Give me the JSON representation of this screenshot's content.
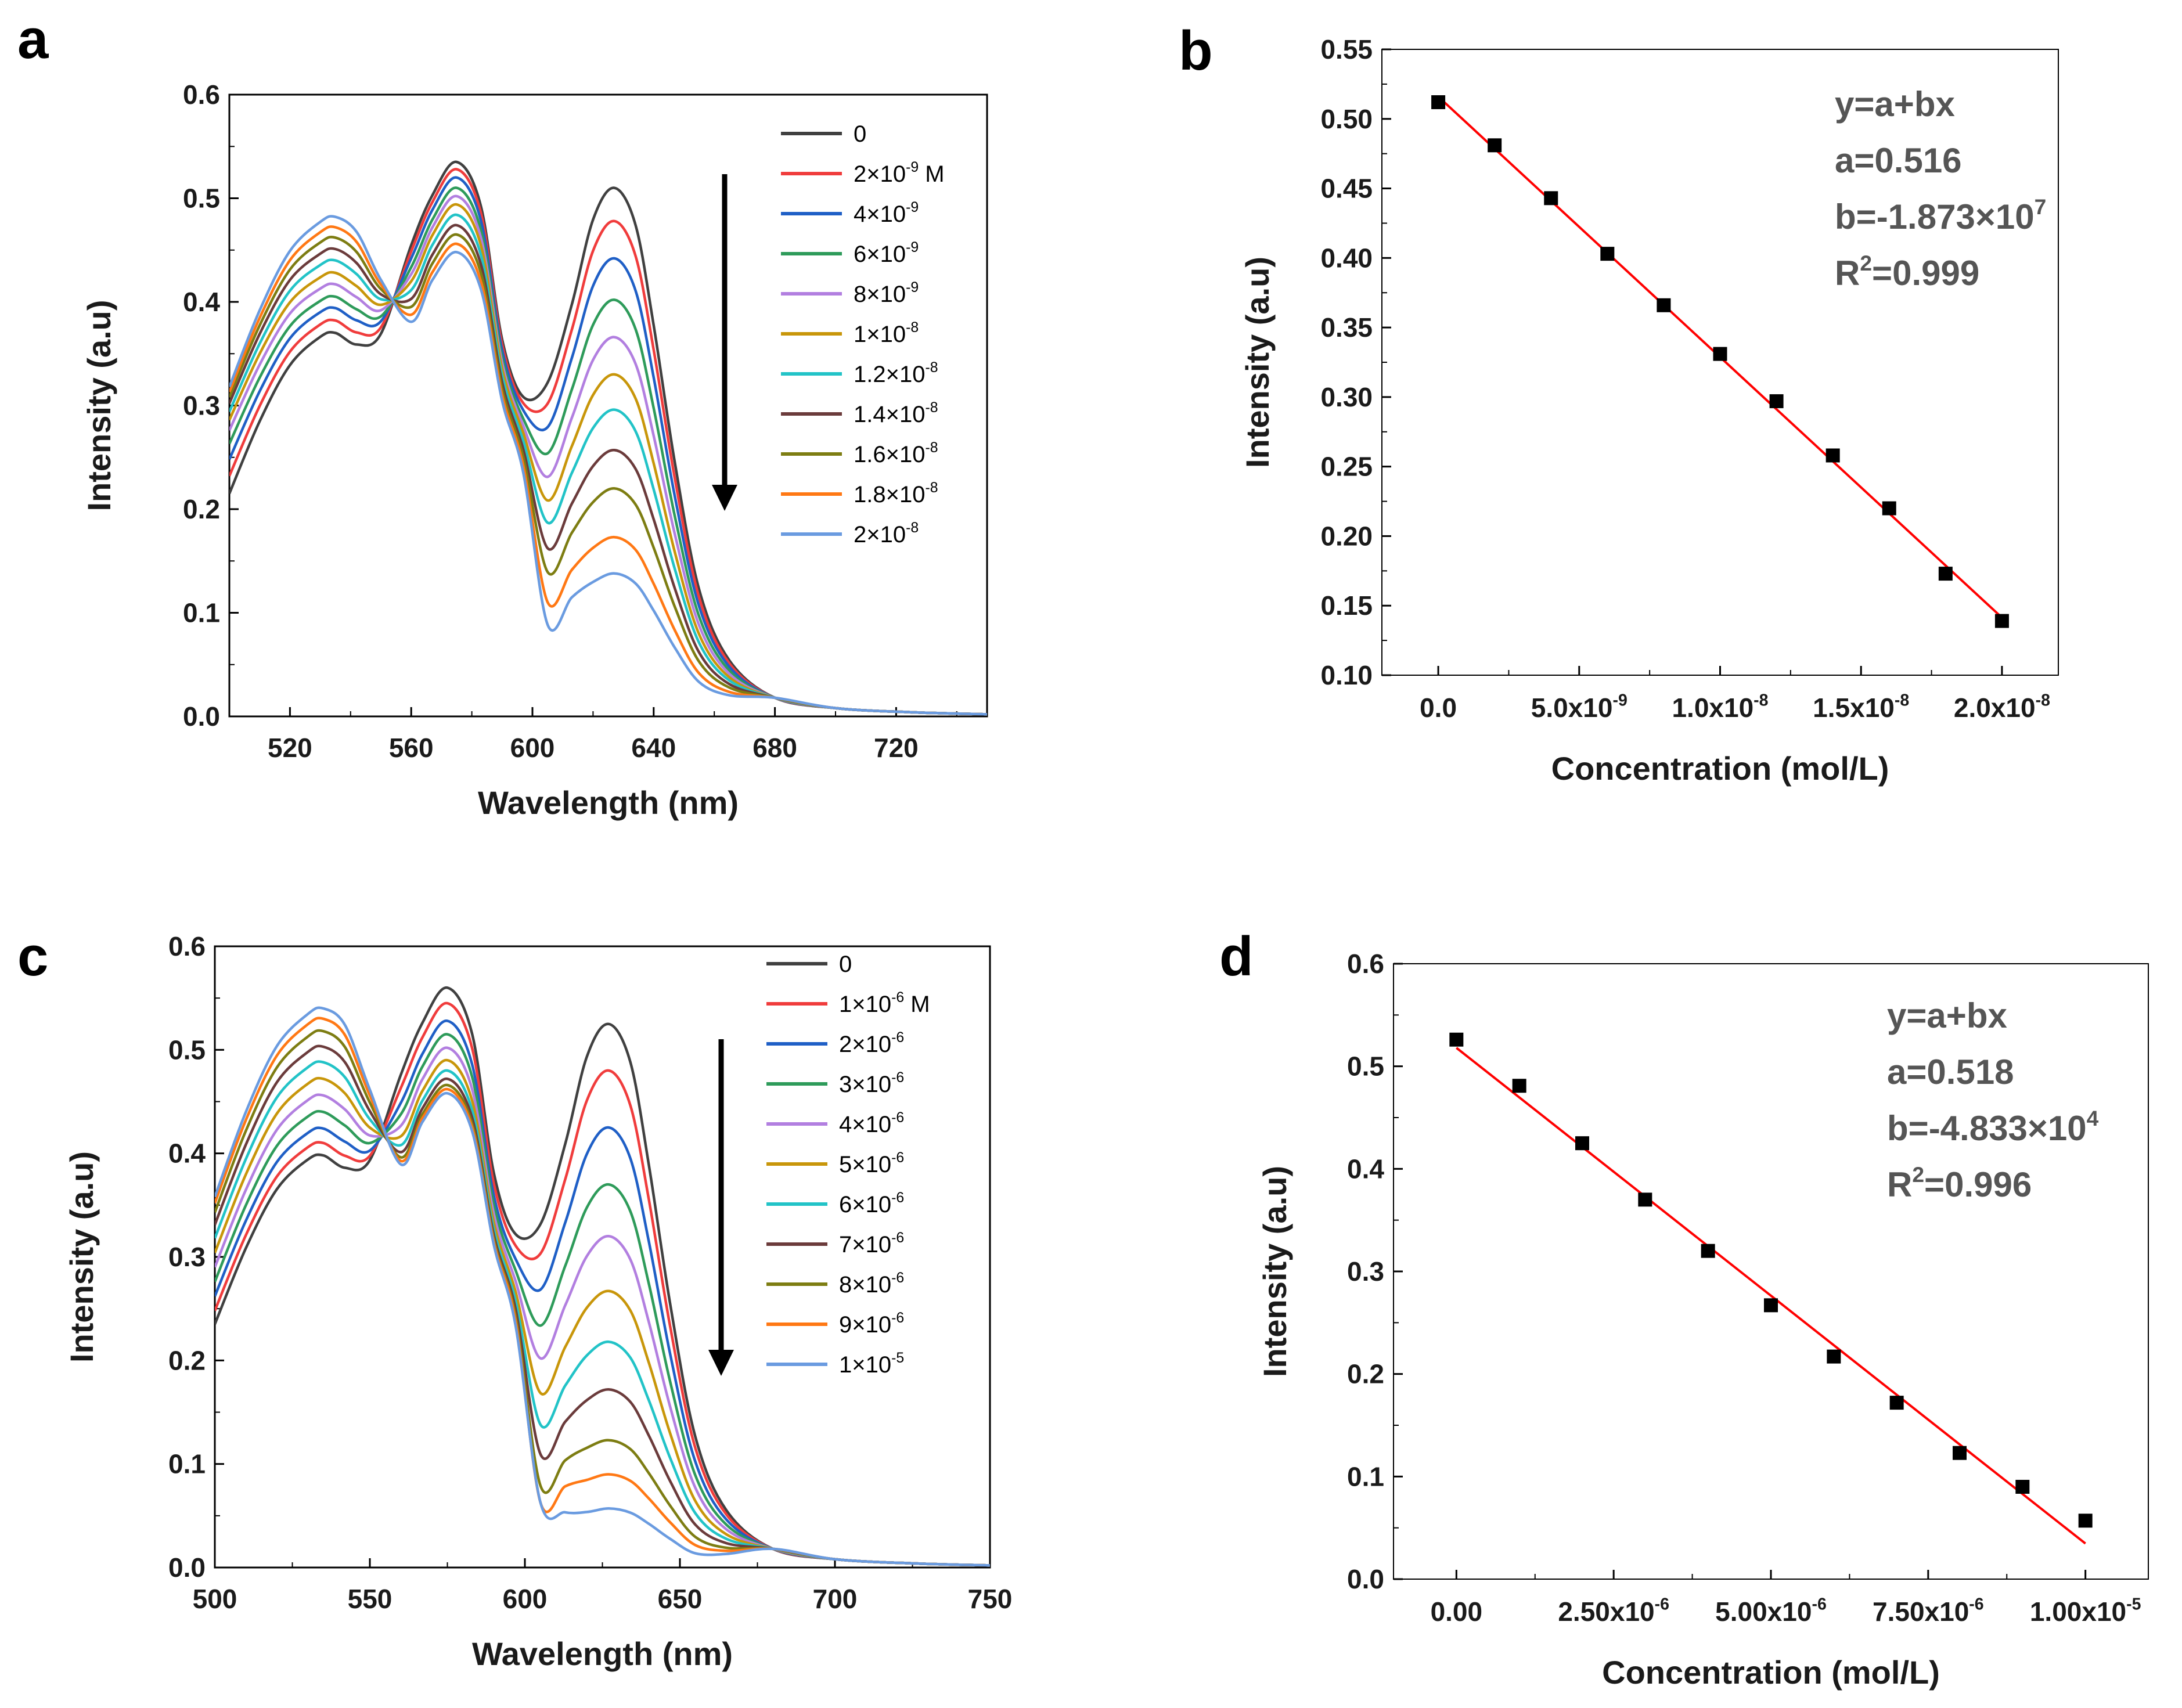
{
  "panels": [
    {
      "label": "a",
      "type": "line",
      "xlabel": "Wavelength (nm)",
      "ylabel": "Intensity (a.u)",
      "xlim": [
        500,
        750
      ],
      "ylim": [
        0.0,
        0.6
      ],
      "xticks": [
        "520",
        "560",
        "600",
        "640",
        "680",
        "720"
      ],
      "yticks": [
        "0.0",
        "0.1",
        "0.2",
        "0.3",
        "0.4",
        "0.5",
        "0.6"
      ],
      "legend_placement": "top-right",
      "annotation": "downward arrow",
      "series": [
        {
          "name": "0",
          "sup": "",
          "tail": "",
          "color": "#404040",
          "values": [
            0.215,
            0.37,
            0.535,
            0.51
          ]
        },
        {
          "name": "2×10",
          "sup": "-9",
          "tail": " M",
          "color": "#f03c3c",
          "values": [
            0.232,
            0.382,
            0.528,
            0.478
          ]
        },
        {
          "name": "4×10",
          "sup": "-9",
          "tail": "",
          "color": "#1f5fc6",
          "values": [
            0.248,
            0.394,
            0.52,
            0.442
          ]
        },
        {
          "name": "6×10",
          "sup": "-9",
          "tail": "",
          "color": "#2e9b5a",
          "values": [
            0.263,
            0.405,
            0.51,
            0.402
          ]
        },
        {
          "name": "8×10",
          "sup": "-9",
          "tail": "",
          "color": "#b27fe0",
          "values": [
            0.276,
            0.417,
            0.502,
            0.366
          ]
        },
        {
          "name": "1×10",
          "sup": "-8",
          "tail": "",
          "color": "#c8960a",
          "values": [
            0.286,
            0.428,
            0.494,
            0.33
          ]
        },
        {
          "name": "1.2×10",
          "sup": "-8",
          "tail": "",
          "color": "#22c3c7",
          "values": [
            0.294,
            0.44,
            0.484,
            0.296
          ]
        },
        {
          "name": "1.4×10",
          "sup": "-8",
          "tail": "",
          "color": "#6b3b3b",
          "values": [
            0.302,
            0.451,
            0.474,
            0.257
          ]
        },
        {
          "name": "1.6×10",
          "sup": "-8",
          "tail": "",
          "color": "#7d7d12",
          "values": [
            0.308,
            0.462,
            0.465,
            0.22
          ]
        },
        {
          "name": "1.8×10",
          "sup": "-8",
          "tail": "",
          "color": "#ff7814",
          "values": [
            0.313,
            0.472,
            0.456,
            0.173
          ]
        },
        {
          "name": "2×10",
          "sup": "-8",
          "tail": "",
          "color": "#6a9be0",
          "values": [
            0.318,
            0.482,
            0.448,
            0.138
          ]
        }
      ]
    },
    {
      "label": "b",
      "type": "scatter",
      "xlabel": "Concentration (mol/L)",
      "ylabel": "Intensity (a.u)",
      "xlim": [
        -2e-09,
        2.2e-08
      ],
      "ylim": [
        0.1,
        0.55
      ],
      "xticks": [
        {
          "base": "0.0",
          "sup": ""
        },
        {
          "base": "5.0x10",
          "sup": "-9"
        },
        {
          "base": "1.0x10",
          "sup": "-8"
        },
        {
          "base": "1.5x10",
          "sup": "-8"
        },
        {
          "base": "2.0x10",
          "sup": "-8"
        }
      ],
      "yticks": [
        "0.10",
        "0.15",
        "0.20",
        "0.25",
        "0.30",
        "0.35",
        "0.40",
        "0.45",
        "0.50",
        "0.55"
      ],
      "x": [
        0,
        2e-09,
        4e-09,
        6e-09,
        8e-09,
        1e-08,
        1.2e-08,
        1.4e-08,
        1.6e-08,
        1.8e-08,
        2e-08
      ],
      "y": [
        0.512,
        0.481,
        0.443,
        0.403,
        0.366,
        0.331,
        0.297,
        0.258,
        0.22,
        0.173,
        0.139
      ],
      "fit": {
        "a": 0.516,
        "b": -18730000.0,
        "color": "#ff0000"
      },
      "equation": {
        "line1": "y=a+bx",
        "line2": "a=0.516",
        "line3_base": "b=-1.873×10",
        "line3_sup": "7",
        "line4_pre": "R",
        "line4_sup": "2",
        "line4_post": "=0.999"
      }
    },
    {
      "label": "c",
      "type": "line",
      "xlabel": "Wavelength (nm)",
      "ylabel": "Intensity (a.u)",
      "xlim": [
        500,
        750
      ],
      "ylim": [
        0.0,
        0.6
      ],
      "xticks": [
        "500",
        "550",
        "600",
        "650",
        "700",
        "750"
      ],
      "yticks": [
        "0.0",
        "0.1",
        "0.2",
        "0.3",
        "0.4",
        "0.5",
        "0.6"
      ],
      "legend_placement": "top-right",
      "annotation": "downward arrow",
      "series": [
        {
          "name": "0",
          "sup": "",
          "tail": "",
          "color": "#404040",
          "values": [
            0.235,
            0.398,
            0.56,
            0.525
          ]
        },
        {
          "name": "1×10",
          "sup": "-6",
          "tail": " M",
          "color": "#f03c3c",
          "values": [
            0.248,
            0.41,
            0.545,
            0.48
          ]
        },
        {
          "name": "2×10",
          "sup": "-6",
          "tail": "",
          "color": "#1f5fc6",
          "values": [
            0.262,
            0.424,
            0.528,
            0.425
          ]
        },
        {
          "name": "3×10",
          "sup": "-6",
          "tail": "",
          "color": "#2e9b5a",
          "values": [
            0.276,
            0.44,
            0.515,
            0.37
          ]
        },
        {
          "name": "4×10",
          "sup": "-6",
          "tail": "",
          "color": "#b27fe0",
          "values": [
            0.29,
            0.456,
            0.502,
            0.32
          ]
        },
        {
          "name": "5×10",
          "sup": "-6",
          "tail": "",
          "color": "#c8960a",
          "values": [
            0.304,
            0.472,
            0.49,
            0.267
          ]
        },
        {
          "name": "6×10",
          "sup": "-6",
          "tail": "",
          "color": "#22c3c7",
          "values": [
            0.318,
            0.488,
            0.48,
            0.218
          ]
        },
        {
          "name": "7×10",
          "sup": "-6",
          "tail": "",
          "color": "#6b3b3b",
          "values": [
            0.331,
            0.503,
            0.472,
            0.172
          ]
        },
        {
          "name": "8×10",
          "sup": "-6",
          "tail": "",
          "color": "#7d7d12",
          "values": [
            0.343,
            0.518,
            0.466,
            0.123
          ]
        },
        {
          "name": "9×10",
          "sup": "-6",
          "tail": "",
          "color": "#ff7814",
          "values": [
            0.352,
            0.53,
            0.462,
            0.09
          ]
        },
        {
          "name": "1×10",
          "sup": "-5",
          "tail": "",
          "color": "#6a9be0",
          "values": [
            0.358,
            0.54,
            0.458,
            0.057
          ]
        }
      ]
    },
    {
      "label": "d",
      "type": "scatter",
      "xlabel": "Concentration (mol/L)",
      "ylabel": "Intensity (a.u)",
      "xlim": [
        -1e-06,
        1.1e-05
      ],
      "ylim": [
        0.0,
        0.6
      ],
      "xticks": [
        {
          "base": "0.00",
          "sup": ""
        },
        {
          "base": "2.50x10",
          "sup": "-6"
        },
        {
          "base": "5.00x10",
          "sup": "-6"
        },
        {
          "base": "7.50x10",
          "sup": "-6"
        },
        {
          "base": "1.00x10",
          "sup": "-5"
        }
      ],
      "yticks": [
        "0.0",
        "0.1",
        "0.2",
        "0.3",
        "0.4",
        "0.5",
        "0.6"
      ],
      "x": [
        0,
        1e-06,
        2e-06,
        3e-06,
        4e-06,
        5e-06,
        6e-06,
        7e-06,
        8e-06,
        9e-06,
        1e-05
      ],
      "y": [
        0.526,
        0.481,
        0.425,
        0.37,
        0.32,
        0.267,
        0.217,
        0.172,
        0.123,
        0.09,
        0.057
      ],
      "fit": {
        "a": 0.518,
        "b": -48330.0,
        "color": "#ff0000"
      },
      "equation": {
        "line1": "y=a+bx",
        "line2": "a=0.518",
        "line3_base": "b=-4.833×10",
        "line3_sup": "4",
        "line4_pre": "R",
        "line4_sup": "2",
        "line4_post": "=0.996"
      }
    }
  ]
}
